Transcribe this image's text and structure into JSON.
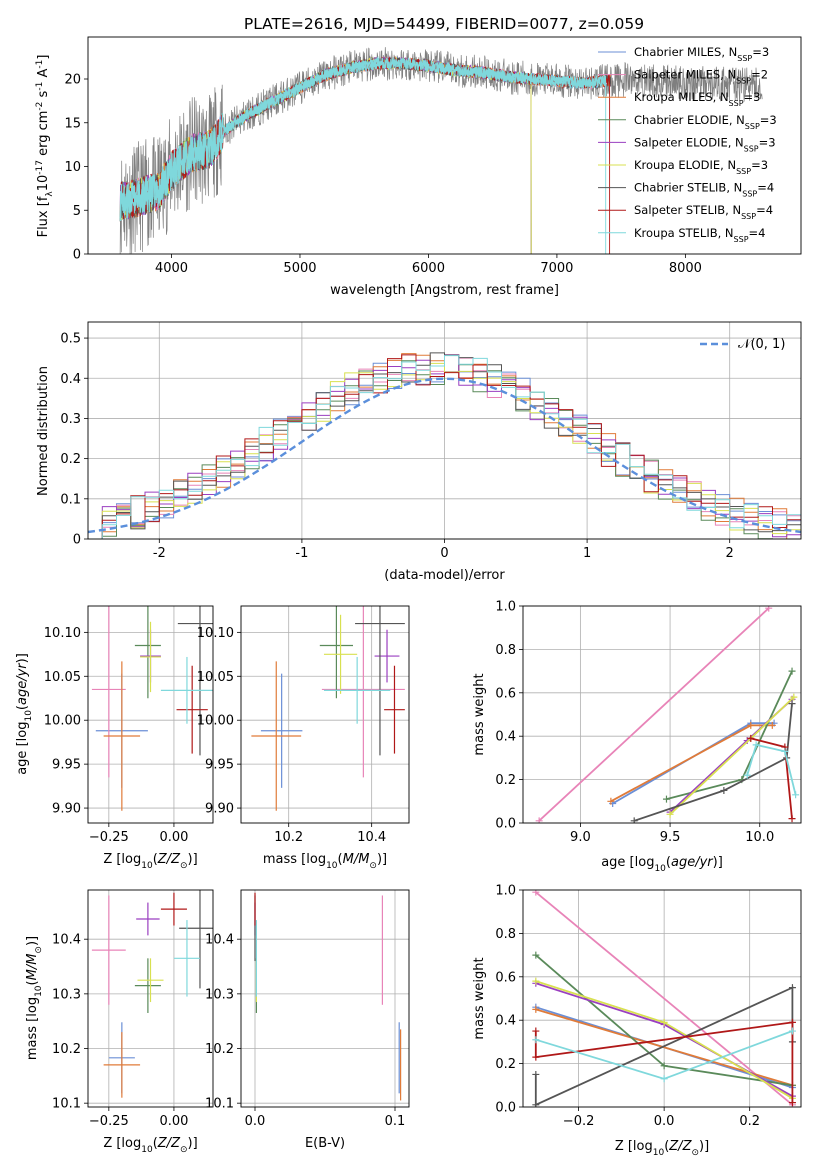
{
  "title": "PLATE=2616, MJD=54499, FIBERID=0077, z=0.059",
  "colors": {
    "Chabrier MILES": "#6b8fd6",
    "Salpeter MILES": "#e884b8",
    "Kroupa MILES": "#e07b39",
    "Chabrier ELODIE": "#5a8a5a",
    "Salpeter ELODIE": "#9a3fc0",
    "Kroupa ELODIE": "#d8e050",
    "Chabrier STELIB": "#555555",
    "Salpeter STELIB": "#b01818",
    "Kroupa STELIB": "#7fd8dc"
  },
  "chart_data": [
    {
      "id": "spectrum",
      "type": "line",
      "xlabel": "wavelength [Angstrom, rest frame]",
      "ylabel_parts": [
        "Flux [f",
        "λ",
        "10",
        "-17",
        " erg cm",
        "-2",
        " s",
        "-1",
        " A",
        "-1",
        "]"
      ],
      "xlim": [
        3350,
        8900
      ],
      "ylim": [
        0,
        24.8
      ],
      "xticks": [
        4000,
        5000,
        6000,
        7000,
        8000
      ],
      "yticks": [
        0,
        5,
        10,
        15,
        20
      ],
      "legend_loc": "right",
      "legend": [
        {
          "pre": "Chabrier MILES, N",
          "sub": "SSP",
          "post": "=3"
        },
        {
          "pre": "Salpeter MILES, N",
          "sub": "SSP",
          "post": "=2"
        },
        {
          "pre": "Kroupa MILES, N",
          "sub": "SSP",
          "post": "=3"
        },
        {
          "pre": "Chabrier ELODIE, N",
          "sub": "SSP",
          "post": "=3"
        },
        {
          "pre": "Salpeter ELODIE, N",
          "sub": "SSP",
          "post": "=3"
        },
        {
          "pre": "Kroupa ELODIE, N",
          "sub": "SSP",
          "post": "=3"
        },
        {
          "pre": "Chabrier STELIB, N",
          "sub": "SSP",
          "post": "=4"
        },
        {
          "pre": "Salpeter STELIB, N",
          "sub": "SSP",
          "post": "=4"
        },
        {
          "pre": "Kroupa STELIB, N",
          "sub": "SSP",
          "post": "=4"
        }
      ],
      "continuum": [
        [
          3600,
          6
        ],
        [
          3750,
          6.5
        ],
        [
          3900,
          7.2
        ],
        [
          4000,
          9.5
        ],
        [
          4150,
          11.5
        ],
        [
          4300,
          12
        ],
        [
          4400,
          14
        ],
        [
          4600,
          16
        ],
        [
          4800,
          17.5
        ],
        [
          5000,
          19
        ],
        [
          5200,
          20.5
        ],
        [
          5400,
          21.3
        ],
        [
          5600,
          21.8
        ],
        [
          5800,
          21.8
        ],
        [
          6000,
          21.5
        ],
        [
          6200,
          21
        ],
        [
          6400,
          20.8
        ],
        [
          6600,
          20.3
        ],
        [
          6800,
          20
        ],
        [
          7000,
          19.8
        ],
        [
          7200,
          19.5
        ],
        [
          7400,
          19.8
        ],
        [
          7600,
          19.9
        ],
        [
          8000,
          19.6
        ],
        [
          8600,
          19.3
        ]
      ]
    },
    {
      "id": "residuals",
      "type": "line",
      "xlabel": "(data-model)/error",
      "ylabel": "Normed distribution",
      "xlim": [
        -2.5,
        2.5
      ],
      "ylim": [
        0,
        0.54
      ],
      "xticks": [
        -2,
        -1,
        0,
        1,
        2
      ],
      "yticks": [
        0.0,
        0.1,
        0.2,
        0.3,
        0.4,
        0.5
      ],
      "grid": true,
      "legend": "𝒩(0, 1)",
      "legend_loc": "top-right"
    },
    {
      "id": "age-vs-Z",
      "type": "scatter",
      "xlabel": "Z [log10(Z/Z⊙)]",
      "ylabel": "age  [log10(age/yr)]",
      "xlim": [
        -0.33,
        0.15
      ],
      "ylim": [
        9.883,
        10.13
      ],
      "xticks": [
        -0.25,
        0.0
      ],
      "xtick_labels": [
        "−0.25",
        "0.00"
      ],
      "yticks": [
        9.9,
        9.95,
        10.0,
        10.05,
        10.1
      ],
      "ytick_labels": [
        "9.90",
        "9.95",
        "10.00",
        "10.05",
        "10.10"
      ],
      "grid": true,
      "points": [
        {
          "model": "Chabrier MILES",
          "x": -0.2,
          "y": 9.988,
          "xerr": 0.1,
          "yerr": 0.065
        },
        {
          "model": "Salpeter MILES",
          "x": -0.25,
          "y": 10.035,
          "xerr": 0.065,
          "yerr": 0.1
        },
        {
          "model": "Kroupa MILES",
          "x": -0.2,
          "y": 9.982,
          "xerr": 0.07,
          "yerr": 0.085
        },
        {
          "model": "Chabrier ELODIE",
          "x": -0.1,
          "y": 10.085,
          "xerr": 0.05,
          "yerr": 0.06
        },
        {
          "model": "Salpeter ELODIE",
          "x": -0.09,
          "y": 10.073,
          "xerr": 0.04,
          "yerr": 0.03
        },
        {
          "model": "Kroupa ELODIE",
          "x": -0.09,
          "y": 10.072,
          "xerr": 0.04,
          "yerr": 0.04
        },
        {
          "model": "Chabrier STELIB",
          "x": 0.1,
          "y": 10.11,
          "xerr": 0.085,
          "yerr": 0.15
        },
        {
          "model": "Salpeter STELIB",
          "x": 0.07,
          "y": 10.012,
          "xerr": 0.06,
          "yerr": 0.05
        },
        {
          "model": "Kroupa STELIB",
          "x": 0.05,
          "y": 10.034,
          "xerr": 0.1,
          "yerr": 0.038
        }
      ]
    },
    {
      "id": "age-vs-mass",
      "type": "scatter",
      "xlabel": "mass [log10(M/M⊙)]",
      "xlim": [
        10.085,
        10.49
      ],
      "ylim": [
        9.883,
        10.13
      ],
      "xticks": [
        10.2,
        10.4
      ],
      "xtick_labels": [
        "10.2",
        "10.4"
      ],
      "yticks": [
        9.9,
        9.95,
        10.0,
        10.05,
        10.1
      ],
      "ytick_labels": [
        "9.90",
        "9.95",
        "10.00",
        "10.05",
        "10.10"
      ],
      "grid": true,
      "points": [
        {
          "model": "Chabrier MILES",
          "x": 10.183,
          "y": 9.988,
          "xerr": 0.05,
          "yerr": 0.065
        },
        {
          "model": "Salpeter MILES",
          "x": 10.38,
          "y": 10.035,
          "xerr": 0.1,
          "yerr": 0.1
        },
        {
          "model": "Kroupa MILES",
          "x": 10.17,
          "y": 9.982,
          "xerr": 0.06,
          "yerr": 0.085
        },
        {
          "model": "Chabrier ELODIE",
          "x": 10.315,
          "y": 10.085,
          "xerr": 0.04,
          "yerr": 0.06
        },
        {
          "model": "Salpeter ELODIE",
          "x": 10.437,
          "y": 10.073,
          "xerr": 0.03,
          "yerr": 0.03
        },
        {
          "model": "Kroupa ELODIE",
          "x": 10.325,
          "y": 10.075,
          "xerr": 0.04,
          "yerr": 0.045
        },
        {
          "model": "Chabrier STELIB",
          "x": 10.42,
          "y": 10.11,
          "xerr": 0.06,
          "yerr": 0.15
        },
        {
          "model": "Salpeter STELIB",
          "x": 10.455,
          "y": 10.012,
          "xerr": 0.025,
          "yerr": 0.05
        },
        {
          "model": "Kroupa STELIB",
          "x": 10.365,
          "y": 10.034,
          "xerr": 0.08,
          "yerr": 0.038
        }
      ]
    },
    {
      "id": "weight-vs-age",
      "type": "line",
      "xlabel": "age  [log10(age/yr)]",
      "ylabel": "mass weight",
      "xlim": [
        8.68,
        10.23
      ],
      "ylim": [
        0,
        1.0
      ],
      "xticks": [
        9.0,
        9.5,
        10.0
      ],
      "xtick_labels": [
        "9.0",
        "9.5",
        "10.0"
      ],
      "yticks": [
        0,
        0.2,
        0.4,
        0.6,
        0.8,
        1.0
      ],
      "ytick_labels": [
        "0.0",
        "0.2",
        "0.4",
        "0.6",
        "0.8",
        "1.0"
      ],
      "grid": true,
      "series": [
        {
          "model": "Salpeter MILES",
          "x": [
            8.77,
            10.05
          ],
          "y": [
            0.01,
            0.99
          ]
        },
        {
          "model": "Chabrier MILES",
          "x": [
            9.18,
            9.95,
            10.08
          ],
          "y": [
            0.09,
            0.46,
            0.46
          ]
        },
        {
          "model": "Kroupa MILES",
          "x": [
            9.17,
            9.95,
            10.07
          ],
          "y": [
            0.1,
            0.45,
            0.45
          ]
        },
        {
          "model": "Chabrier ELODIE",
          "x": [
            9.48,
            9.9,
            10.18
          ],
          "y": [
            0.11,
            0.2,
            0.7
          ]
        },
        {
          "model": "Salpeter ELODIE",
          "x": [
            9.5,
            9.93,
            10.18
          ],
          "y": [
            0.05,
            0.38,
            0.57
          ]
        },
        {
          "model": "Kroupa ELODIE",
          "x": [
            9.5,
            9.95,
            10.19
          ],
          "y": [
            0.04,
            0.39,
            0.58
          ]
        },
        {
          "model": "Chabrier STELIB",
          "x": [
            9.3,
            9.8,
            10.15,
            10.18
          ],
          "y": [
            0.01,
            0.15,
            0.3,
            0.55
          ]
        },
        {
          "model": "Salpeter STELIB",
          "x": [
            9.95,
            10.14,
            10.18
          ],
          "y": [
            0.39,
            0.35,
            0.02
          ]
        },
        {
          "model": "Kroupa STELIB",
          "x": [
            9.93,
            9.98,
            10.14,
            10.2
          ],
          "y": [
            0.22,
            0.36,
            0.33,
            0.13
          ]
        }
      ]
    },
    {
      "id": "mass-vs-Z",
      "type": "scatter",
      "xlabel": "Z [log10(Z/Z⊙)]",
      "ylabel": "mass [log10(M/M⊙)]",
      "xlim": [
        -0.33,
        0.15
      ],
      "ylim": [
        10.093,
        10.49
      ],
      "xticks": [
        -0.25,
        0.0
      ],
      "xtick_labels": [
        "−0.25",
        "0.00"
      ],
      "yticks": [
        10.1,
        10.2,
        10.3,
        10.4
      ],
      "ytick_labels": [
        "10.1",
        "10.2",
        "10.3",
        "10.4"
      ],
      "grid": true,
      "points": [
        {
          "model": "Chabrier MILES",
          "x": -0.2,
          "y": 10.183,
          "xerr": 0.05,
          "yerr": 0.065
        },
        {
          "model": "Salpeter MILES",
          "x": -0.25,
          "y": 10.38,
          "xerr": 0.065,
          "yerr": 0.1
        },
        {
          "model": "Kroupa MILES",
          "x": -0.2,
          "y": 10.17,
          "xerr": 0.07,
          "yerr": 0.06
        },
        {
          "model": "Chabrier ELODIE",
          "x": -0.1,
          "y": 10.315,
          "xerr": 0.05,
          "yerr": 0.05
        },
        {
          "model": "Salpeter ELODIE",
          "x": -0.1,
          "y": 10.437,
          "xerr": 0.045,
          "yerr": 0.03
        },
        {
          "model": "Kroupa ELODIE",
          "x": -0.09,
          "y": 10.325,
          "xerr": 0.05,
          "yerr": 0.04
        },
        {
          "model": "Chabrier STELIB",
          "x": 0.1,
          "y": 10.42,
          "xerr": 0.08,
          "yerr": 0.11
        },
        {
          "model": "Salpeter STELIB",
          "x": 0.0,
          "y": 10.455,
          "xerr": 0.05,
          "yerr": 0.03
        },
        {
          "model": "Kroupa STELIB",
          "x": 0.05,
          "y": 10.365,
          "xerr": 0.05,
          "yerr": 0.07
        }
      ]
    },
    {
      "id": "mass-vs-EBV",
      "type": "scatter",
      "xlabel": "E(B-V)",
      "xlim": [
        -0.01,
        0.11
      ],
      "ylim": [
        10.093,
        10.49
      ],
      "xticks": [
        0.0,
        0.1
      ],
      "xtick_labels": [
        "0.0",
        "0.1"
      ],
      "yticks": [
        10.1,
        10.2,
        10.3,
        10.4
      ],
      "ytick_labels": [
        "10.1",
        "10.2",
        "10.3",
        "10.4"
      ],
      "grid": true,
      "points": [
        {
          "model": "Chabrier MILES",
          "x": 0.103,
          "y": 10.183,
          "xerr": 0,
          "yerr": 0.065
        },
        {
          "model": "Salpeter MILES",
          "x": 0.091,
          "y": 10.38,
          "xerr": 0,
          "yerr": 0.1
        },
        {
          "model": "Kroupa MILES",
          "x": 0.104,
          "y": 10.17,
          "xerr": 0,
          "yerr": 0.065
        },
        {
          "model": "Chabrier ELODIE",
          "x": 0.001,
          "y": 10.315,
          "xerr": 0,
          "yerr": 0.05
        },
        {
          "model": "Salpeter ELODIE",
          "x": 0.0,
          "y": 10.437,
          "xerr": 0,
          "yerr": 0.03
        },
        {
          "model": "Kroupa ELODIE",
          "x": 0.001,
          "y": 10.325,
          "xerr": 0,
          "yerr": 0.04
        },
        {
          "model": "Chabrier STELIB",
          "x": 0.0,
          "y": 10.42,
          "xerr": 0,
          "yerr": 0.06
        },
        {
          "model": "Salpeter STELIB",
          "x": 0.0,
          "y": 10.455,
          "xerr": 0,
          "yerr": 0.03
        },
        {
          "model": "Kroupa STELIB",
          "x": 0.001,
          "y": 10.365,
          "xerr": 0,
          "yerr": 0.07
        }
      ]
    },
    {
      "id": "weight-vs-Z",
      "type": "line",
      "xlabel": "Z [log10(Z/Z⊙)]",
      "ylabel": "mass weight",
      "xlim": [
        -0.33,
        0.32
      ],
      "ylim": [
        0,
        1.0
      ],
      "xticks": [
        -0.2,
        0.0,
        0.2
      ],
      "xtick_labels": [
        "−0.2",
        "0.0",
        "0.2"
      ],
      "yticks": [
        0,
        0.2,
        0.4,
        0.6,
        0.8,
        1.0
      ],
      "ytick_labels": [
        "0.0",
        "0.2",
        "0.4",
        "0.6",
        "0.8",
        "1.0"
      ],
      "grid": true,
      "series": [
        {
          "model": "Salpeter MILES",
          "x": [
            -0.3,
            0.3
          ],
          "y": [
            0.99,
            0.01
          ]
        },
        {
          "model": "Chabrier MILES",
          "x": [
            -0.3,
            0.3
          ],
          "y": [
            0.46,
            0.09
          ]
        },
        {
          "model": "Kroupa MILES",
          "x": [
            -0.3,
            0.3
          ],
          "y": [
            0.45,
            0.1
          ]
        },
        {
          "model": "Chabrier ELODIE",
          "x": [
            -0.3,
            0.0,
            0.3
          ],
          "y": [
            0.7,
            0.19,
            0.1
          ]
        },
        {
          "model": "Salpeter ELODIE",
          "x": [
            -0.3,
            0.0,
            0.3
          ],
          "y": [
            0.57,
            0.38,
            0.05
          ]
        },
        {
          "model": "Kroupa ELODIE",
          "x": [
            -0.3,
            0.0,
            0.3
          ],
          "y": [
            0.58,
            0.39,
            0.04
          ]
        },
        {
          "model": "Chabrier STELIB",
          "x": [
            -0.3,
            -0.3,
            0.3,
            0.3
          ],
          "y": [
            0.15,
            0.01,
            0.55,
            0.3
          ]
        },
        {
          "model": "Salpeter STELIB",
          "x": [
            -0.3,
            -0.3,
            0.3,
            0.3
          ],
          "y": [
            0.35,
            0.23,
            0.39,
            0.02
          ]
        },
        {
          "model": "Kroupa STELIB",
          "x": [
            -0.3,
            0.0,
            0.3
          ],
          "y": [
            0.31,
            0.13,
            0.35
          ]
        }
      ]
    }
  ]
}
